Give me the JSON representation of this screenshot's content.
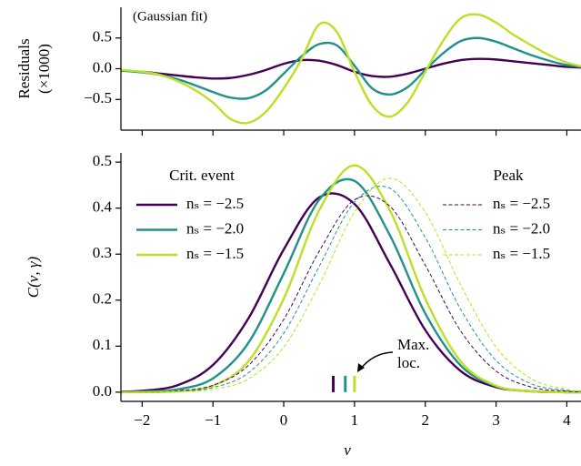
{
  "chart_data": [
    {
      "type": "line",
      "ylabel": [
        "Residuals",
        "(×1000)"
      ],
      "annotation": "(Gaussian fit)",
      "x": [
        -2.3,
        -2,
        -1.75,
        -1.5,
        -1.25,
        -1,
        -0.75,
        -0.5,
        -0.25,
        0,
        0.25,
        0.5,
        0.75,
        1,
        1.25,
        1.5,
        1.75,
        2,
        2.25,
        2.5,
        2.75,
        3,
        3.25,
        3.5,
        3.75,
        4,
        4.2
      ],
      "xlim": [
        -2.3,
        4.2
      ],
      "xticks": [
        -2,
        -1,
        0,
        1,
        2,
        3,
        4
      ],
      "xtick_labels": false,
      "ylim": [
        -1,
        1
      ],
      "yticks": [
        {
          "value": -0.5,
          "label": "−0.5"
        },
        {
          "value": 0,
          "label": "0.0"
        },
        {
          "value": 0.5,
          "label": "0.5"
        }
      ],
      "series": [
        {
          "color": "#440154",
          "values": [
            -0.03,
            -0.05,
            -0.08,
            -0.11,
            -0.14,
            -0.16,
            -0.15,
            -0.1,
            -0.02,
            0.08,
            0.14,
            0.13,
            0.06,
            -0.05,
            -0.12,
            -0.13,
            -0.08,
            0.0,
            0.08,
            0.14,
            0.16,
            0.15,
            0.12,
            0.09,
            0.06,
            0.03,
            0.02
          ]
        },
        {
          "color": "#21918c",
          "values": [
            -0.03,
            -0.06,
            -0.1,
            -0.17,
            -0.27,
            -0.38,
            -0.47,
            -0.48,
            -0.35,
            -0.08,
            0.2,
            0.4,
            0.38,
            0.05,
            -0.32,
            -0.42,
            -0.3,
            -0.02,
            0.25,
            0.45,
            0.5,
            0.44,
            0.33,
            0.22,
            0.13,
            0.06,
            0.03
          ]
        },
        {
          "color": "#bddf26",
          "values": [
            -0.02,
            -0.05,
            -0.1,
            -0.2,
            -0.35,
            -0.55,
            -0.82,
            -0.88,
            -0.7,
            -0.32,
            0.15,
            0.72,
            0.6,
            -0.05,
            -0.6,
            -0.78,
            -0.55,
            -0.05,
            0.45,
            0.82,
            0.88,
            0.75,
            0.55,
            0.38,
            0.22,
            0.1,
            0.04
          ]
        }
      ]
    },
    {
      "type": "line",
      "ylabel": "C(ν, γ)",
      "xlabel": "ν",
      "annotation": [
        "Max.",
        "loc."
      ],
      "x": [
        -2.3,
        -2,
        -1.5,
        -1,
        -0.5,
        0,
        0.5,
        1,
        1.5,
        2,
        2.5,
        3,
        3.5,
        4,
        4.2
      ],
      "xlim": [
        -2.3,
        4.2
      ],
      "xticks": [
        {
          "value": -2,
          "label": "−2"
        },
        {
          "value": -1,
          "label": "−1"
        },
        {
          "value": 0,
          "label": "0"
        },
        1,
        2,
        3,
        4
      ],
      "ylim": [
        -0.02,
        0.52
      ],
      "yticks": [
        {
          "value": 0,
          "label": "0.0"
        },
        0.1,
        0.2,
        0.3,
        0.4,
        0.5
      ],
      "legends": [
        {
          "title": "Crit. event",
          "loc": "upper left"
        },
        {
          "title": "Peak",
          "loc": "upper right"
        }
      ],
      "series": [
        {
          "name": "nₛ = −2.5",
          "color": "#440154",
          "style": "solid",
          "legend": 0,
          "max_loc": 0.7,
          "values": [
            0.001,
            0.003,
            0.015,
            0.059,
            0.16,
            0.31,
            0.423,
            0.409,
            0.279,
            0.135,
            0.046,
            0.011,
            0.002,
            0.0,
            0.0
          ]
        },
        {
          "name": "nₛ = −2.0",
          "color": "#21918c",
          "style": "solid",
          "legend": 0,
          "max_loc": 0.87,
          "values": [
            0.0,
            0.001,
            0.006,
            0.03,
            0.107,
            0.258,
            0.418,
            0.459,
            0.341,
            0.171,
            0.058,
            0.013,
            0.002,
            0.0,
            0.0
          ]
        },
        {
          "name": "nₛ = −1.5",
          "color": "#bddf26",
          "style": "solid",
          "legend": 0,
          "max_loc": 1.0,
          "values": [
            0.0,
            0.0,
            0.002,
            0.014,
            0.067,
            0.203,
            0.395,
            0.493,
            0.395,
            0.203,
            0.067,
            0.014,
            0.002,
            0.0,
            0.0
          ]
        },
        {
          "name": "nₛ = −2.5",
          "color": "#440154",
          "style": "dashed",
          "legend": 1,
          "values": [
            0.0,
            0.0,
            0.003,
            0.015,
            0.058,
            0.158,
            0.306,
            0.418,
            0.404,
            0.276,
            0.133,
            0.046,
            0.011,
            0.002,
            0.001
          ]
        },
        {
          "name": "nₛ = −2.0",
          "color": "#21918c",
          "style": "dashed",
          "legend": 1,
          "values": [
            0.0,
            0.0,
            0.002,
            0.01,
            0.042,
            0.128,
            0.273,
            0.413,
            0.443,
            0.336,
            0.18,
            0.069,
            0.018,
            0.004,
            0.002
          ]
        },
        {
          "name": "nₛ = −1.5",
          "color": "#bddf26",
          "style": "dashed",
          "legend": 1,
          "values": [
            0.0,
            0.0,
            0.001,
            0.006,
            0.029,
            0.098,
            0.233,
            0.391,
            0.465,
            0.391,
            0.233,
            0.098,
            0.029,
            0.006,
            0.003
          ]
        }
      ]
    }
  ]
}
